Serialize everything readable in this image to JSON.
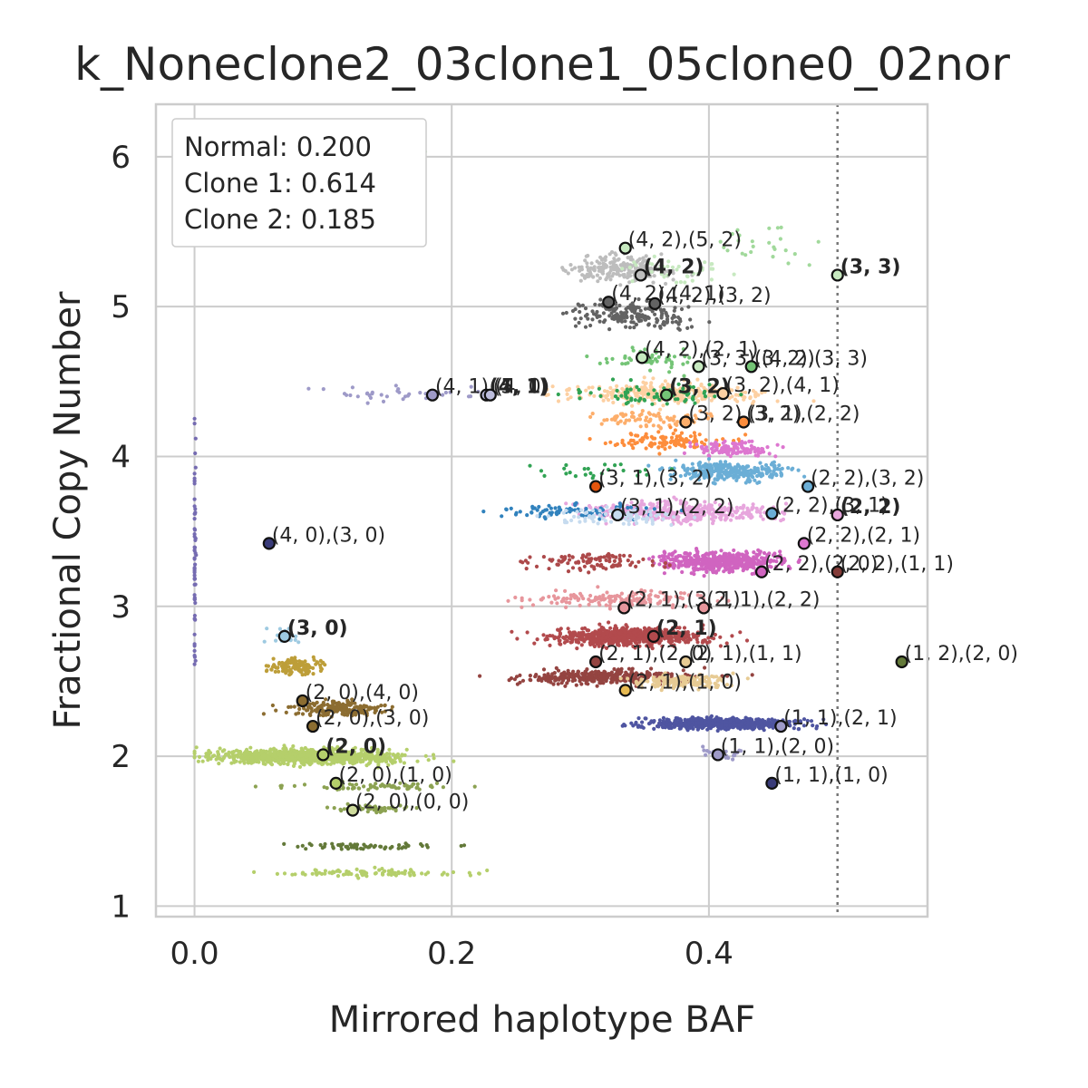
{
  "chart_data": {
    "type": "scatter",
    "title": "k_Noneclone2_03clone1_05clone0_02nor",
    "xlabel": "Mirrored haplotype BAF",
    "ylabel": "Fractional Copy Number",
    "xlim": [
      -0.03,
      0.57
    ],
    "ylim": [
      0.93,
      6.35
    ],
    "xticks": [
      0.0,
      0.2,
      0.4
    ],
    "xtick_labels": [
      "0.0",
      "0.2",
      "0.4"
    ],
    "yticks": [
      1,
      2,
      3,
      4,
      5,
      6
    ],
    "ytick_labels": [
      "1",
      "2",
      "3",
      "4",
      "5",
      "6"
    ],
    "grid": true,
    "reference_line_x": 0.5,
    "legend": {
      "placement": "top-left",
      "entries": [
        "Normal: 0.200",
        "Clone 1: 0.614",
        "Clone 2: 0.185"
      ]
    },
    "clusters": [
      {
        "x": 0.17,
        "y": 6.0,
        "sx": 0.012,
        "sy": 0.06,
        "n": 10,
        "color": "#c7e9c0"
      },
      {
        "x": 0.33,
        "y": 5.25,
        "sx": 0.035,
        "sy": 0.07,
        "n": 220,
        "color": "#bdbdbd"
      },
      {
        "x": 0.37,
        "y": 5.25,
        "sx": 0.04,
        "sy": 0.08,
        "n": 40,
        "color": "#c7e9c0"
      },
      {
        "x": 0.34,
        "y": 4.95,
        "sx": 0.04,
        "sy": 0.07,
        "n": 200,
        "color": "#636363"
      },
      {
        "x": 0.35,
        "y": 4.65,
        "sx": 0.035,
        "sy": 0.06,
        "n": 50,
        "color": "#74c476"
      },
      {
        "x": 0.37,
        "y": 4.42,
        "sx": 0.06,
        "sy": 0.06,
        "n": 300,
        "color": "#fdd0a2"
      },
      {
        "x": 0.36,
        "y": 4.42,
        "sx": 0.05,
        "sy": 0.06,
        "n": 80,
        "color": "#31a354"
      },
      {
        "x": 0.36,
        "y": 4.25,
        "sx": 0.05,
        "sy": 0.05,
        "n": 80,
        "color": "#fdae6b"
      },
      {
        "x": 0.37,
        "y": 4.1,
        "sx": 0.04,
        "sy": 0.05,
        "n": 120,
        "color": "#fd8d3c"
      },
      {
        "x": 0.42,
        "y": 4.05,
        "sx": 0.025,
        "sy": 0.04,
        "n": 120,
        "color": "#dd77d0"
      },
      {
        "x": 0.42,
        "y": 3.9,
        "sx": 0.04,
        "sy": 0.05,
        "n": 280,
        "color": "#6baed6"
      },
      {
        "x": 0.38,
        "y": 3.63,
        "sx": 0.06,
        "sy": 0.06,
        "n": 350,
        "color": "#e7a6dd"
      },
      {
        "x": 0.3,
        "y": 3.63,
        "sx": 0.05,
        "sy": 0.04,
        "n": 90,
        "color": "#3182bd"
      },
      {
        "x": 0.33,
        "y": 3.6,
        "sx": 0.04,
        "sy": 0.04,
        "n": 90,
        "color": "#c6dbef"
      },
      {
        "x": 0.41,
        "y": 3.3,
        "sx": 0.04,
        "sy": 0.06,
        "n": 500,
        "color": "#d064c0"
      },
      {
        "x": 0.31,
        "y": 3.3,
        "sx": 0.04,
        "sy": 0.05,
        "n": 100,
        "color": "#ad494a"
      },
      {
        "x": 0.33,
        "y": 3.05,
        "sx": 0.06,
        "sy": 0.05,
        "n": 160,
        "color": "#e7969c"
      },
      {
        "x": 0.34,
        "y": 2.8,
        "sx": 0.05,
        "sy": 0.05,
        "n": 650,
        "color": "#b24a4d"
      },
      {
        "x": 0.32,
        "y": 2.53,
        "sx": 0.06,
        "sy": 0.04,
        "n": 350,
        "color": "#944441"
      },
      {
        "x": 0.38,
        "y": 2.5,
        "sx": 0.03,
        "sy": 0.04,
        "n": 160,
        "color": "#e7cb94"
      },
      {
        "x": 0.41,
        "y": 2.22,
        "sx": 0.05,
        "sy": 0.03,
        "n": 650,
        "color": "#4f55a1"
      },
      {
        "x": 0.41,
        "y": 2.02,
        "sx": 0.015,
        "sy": 0.03,
        "n": 30,
        "color": "#9e9ac8"
      },
      {
        "x": 0.16,
        "y": 4.42,
        "sx": 0.05,
        "sy": 0.04,
        "n": 40,
        "color": "#9e9ac8"
      },
      {
        "x": 0.0,
        "y": 3.4,
        "sx": 0.001,
        "sy": 0.7,
        "n": 60,
        "color": "#756bb1"
      },
      {
        "x": 0.08,
        "y": 2.6,
        "sx": 0.02,
        "sy": 0.05,
        "n": 120,
        "color": "#bd9e39"
      },
      {
        "x": 0.11,
        "y": 2.32,
        "sx": 0.035,
        "sy": 0.04,
        "n": 200,
        "color": "#8c6d31"
      },
      {
        "x": 0.09,
        "y": 2.0,
        "sx": 0.06,
        "sy": 0.04,
        "n": 1000,
        "color": "#b5cf6b"
      },
      {
        "x": 0.14,
        "y": 1.8,
        "sx": 0.06,
        "sy": 0.02,
        "n": 70,
        "color": "#8ca252"
      },
      {
        "x": 0.14,
        "y": 1.65,
        "sx": 0.03,
        "sy": 0.02,
        "n": 60,
        "color": "#8ca252"
      },
      {
        "x": 0.13,
        "y": 1.4,
        "sx": 0.06,
        "sy": 0.02,
        "n": 60,
        "color": "#637939"
      },
      {
        "x": 0.14,
        "y": 1.22,
        "sx": 0.06,
        "sy": 0.02,
        "n": 90,
        "color": "#b5cf6b"
      },
      {
        "x": 0.07,
        "y": 2.8,
        "sx": 0.01,
        "sy": 0.05,
        "n": 25,
        "color": "#9ecae1"
      },
      {
        "x": 0.32,
        "y": 3.9,
        "sx": 0.05,
        "sy": 0.05,
        "n": 25,
        "color": "#31a354"
      },
      {
        "x": 0.44,
        "y": 5.4,
        "sx": 0.03,
        "sy": 0.1,
        "n": 25,
        "color": "#a1d99b"
      }
    ],
    "labeled_points": [
      {
        "x": 0.335,
        "y": 5.39,
        "label": "(4, 2),(5, 2)",
        "bold": false,
        "color": "#c7e9c0"
      },
      {
        "x": 0.347,
        "y": 5.21,
        "label": "(4, 2)",
        "bold": true,
        "color": "#bdbdbd"
      },
      {
        "x": 0.5,
        "y": 5.21,
        "label": "(3, 3)",
        "bold": true,
        "color": "#c7e9c0"
      },
      {
        "x": 0.322,
        "y": 5.03,
        "label": "(4, 2),(4, 1)",
        "bold": false,
        "color": "#636363"
      },
      {
        "x": 0.358,
        "y": 5.02,
        "label": "(4, 2),(3, 2)",
        "bold": false,
        "color": "#636363"
      },
      {
        "x": 0.348,
        "y": 4.66,
        "label": "(4, 2),(2, 1)",
        "bold": false,
        "color": "#c7e9c0"
      },
      {
        "x": 0.392,
        "y": 4.6,
        "label": "(3, 3),(4, 2)",
        "bold": false,
        "color": "#c7e9c0"
      },
      {
        "x": 0.433,
        "y": 4.6,
        "label": "(3, 2),(3, 3)",
        "bold": false,
        "color": "#74c476"
      },
      {
        "x": 0.185,
        "y": 4.41,
        "label": "(4, 1),(4, 0)",
        "bold": false,
        "color": "#9e9ac8"
      },
      {
        "x": 0.227,
        "y": 4.41,
        "label": "(4, 1)",
        "bold": true,
        "color": "#bcbddc"
      },
      {
        "x": 0.23,
        "y": 4.41,
        "label": "(5, 1)",
        "bold": false,
        "color": "#bcbddc"
      },
      {
        "x": 0.367,
        "y": 4.41,
        "label": "(3, 2)",
        "bold": true,
        "color": "#74c476"
      },
      {
        "x": 0.411,
        "y": 4.42,
        "label": "(3, 2),(4, 1)",
        "bold": false,
        "color": "#fdd0a2"
      },
      {
        "x": 0.382,
        "y": 4.23,
        "label": "(3, 2),(3, 1)",
        "bold": false,
        "color": "#fdae6b"
      },
      {
        "x": 0.427,
        "y": 4.23,
        "label": "(3, 2),(2, 2)",
        "bold": false,
        "color": "#fd8d3c"
      },
      {
        "x": 0.312,
        "y": 3.8,
        "label": "(3, 1),(3, 2)",
        "bold": false,
        "color": "#e6550d"
      },
      {
        "x": 0.477,
        "y": 3.8,
        "label": "(2, 2),(3, 2)",
        "bold": false,
        "color": "#6baed6"
      },
      {
        "x": 0.329,
        "y": 3.61,
        "label": "(3, 1),(2, 2)",
        "bold": false,
        "color": "#c6dbef"
      },
      {
        "x": 0.449,
        "y": 3.62,
        "label": "(2, 2),(3, 1)",
        "bold": false,
        "color": "#6baed6"
      },
      {
        "x": 0.5,
        "y": 3.61,
        "label": "(2, 2)",
        "bold": true,
        "color": "#e7a6dd"
      },
      {
        "x": 0.058,
        "y": 3.42,
        "label": "(4, 0),(3, 0)",
        "bold": false,
        "color": "#393b79"
      },
      {
        "x": 0.474,
        "y": 3.42,
        "label": "(2, 2),(2, 1)",
        "bold": false,
        "color": "#dd77d0"
      },
      {
        "x": 0.441,
        "y": 3.23,
        "label": "(2, 2),(2, 0)",
        "bold": false,
        "color": "#d064c0"
      },
      {
        "x": 0.5,
        "y": 3.23,
        "label": "(2, 2),(1, 1)",
        "bold": false,
        "color": "#843c39"
      },
      {
        "x": 0.334,
        "y": 2.99,
        "label": "(2, 1),(3, 1)",
        "bold": false,
        "color": "#e7969c"
      },
      {
        "x": 0.396,
        "y": 2.99,
        "label": "(2, 1),(2, 2)",
        "bold": false,
        "color": "#e7969c"
      },
      {
        "x": 0.07,
        "y": 2.8,
        "label": "(3, 0)",
        "bold": true,
        "color": "#9ecae1"
      },
      {
        "x": 0.357,
        "y": 2.8,
        "label": "(2, 1)",
        "bold": true,
        "color": "#b24a4d"
      },
      {
        "x": 0.312,
        "y": 2.63,
        "label": "(2, 1),(2, 0)",
        "bold": false,
        "color": "#944441"
      },
      {
        "x": 0.382,
        "y": 2.63,
        "label": "(2, 1),(1, 1)",
        "bold": false,
        "color": "#e7cb94"
      },
      {
        "x": 0.55,
        "y": 2.63,
        "label": "(1, 2),(2, 0)",
        "bold": false,
        "color": "#637939"
      },
      {
        "x": 0.335,
        "y": 2.44,
        "label": "(2, 1),(1, 0)",
        "bold": false,
        "color": "#e7ba52"
      },
      {
        "x": 0.084,
        "y": 2.37,
        "label": "(2, 0),(4, 0)",
        "bold": false,
        "color": "#8c6d31"
      },
      {
        "x": 0.092,
        "y": 2.2,
        "label": "(2, 0),(3, 0)",
        "bold": false,
        "color": "#8c6d31"
      },
      {
        "x": 0.456,
        "y": 2.2,
        "label": "(1, 1),(2, 1)",
        "bold": false,
        "color": "#9e9ac8"
      },
      {
        "x": 0.1,
        "y": 2.01,
        "label": "(2, 0)",
        "bold": true,
        "color": "#b5cf6b"
      },
      {
        "x": 0.407,
        "y": 2.01,
        "label": "(1, 1),(2, 0)",
        "bold": false,
        "color": "#9e9ac8"
      },
      {
        "x": 0.11,
        "y": 1.82,
        "label": "(2, 0),(1, 0)",
        "bold": false,
        "color": "#b5cf6b"
      },
      {
        "x": 0.449,
        "y": 1.82,
        "label": "(1, 1),(1, 0)",
        "bold": false,
        "color": "#393b79"
      },
      {
        "x": 0.123,
        "y": 1.64,
        "label": "(2, 0),(0, 0)",
        "bold": false,
        "color": "#cedb9c"
      }
    ]
  }
}
